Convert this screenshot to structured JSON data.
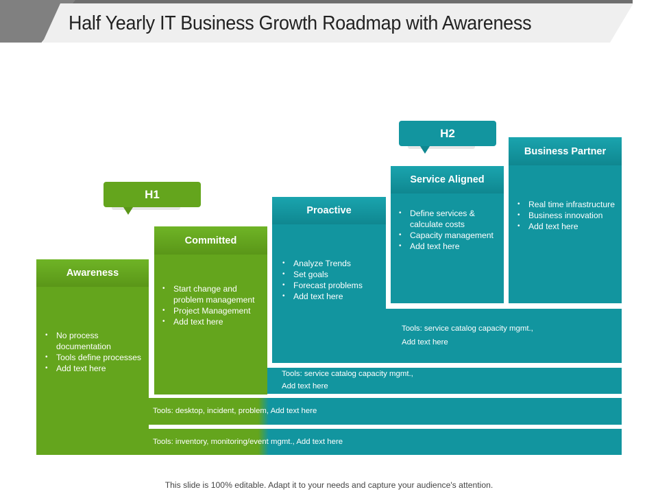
{
  "title": "Half Yearly IT Business Growth Roadmap with Awareness",
  "phases": {
    "h1": "H1",
    "h2": "H2"
  },
  "stages": [
    {
      "name": "Awareness",
      "color": "#64a51d",
      "items": [
        "No process documentation",
        "Tools define processes",
        "Add text here"
      ]
    },
    {
      "name": "Committed",
      "color": "#64a51d",
      "items": [
        "Start change and problem management",
        "Project Management",
        "Add text here"
      ]
    },
    {
      "name": "Proactive",
      "color": "#12959f",
      "items": [
        "Analyze Trends",
        "Set goals",
        "Forecast problems",
        "Add text here"
      ]
    },
    {
      "name": "Service Aligned",
      "color": "#12959f",
      "items": [
        "Define services & calculate costs",
        "Capacity management",
        "Add text here"
      ]
    },
    {
      "name": "Business Partner",
      "color": "#12959f",
      "items": [
        "Real time infrastructure",
        "Business innovation",
        "Add text here"
      ]
    }
  ],
  "tools": {
    "row1": "Tools: inventory, monitoring/event mgmt., Add text here",
    "row2": "Tools: desktop, incident, problem, Add text here",
    "row3_line1": "Tools: service catalog capacity mgmt.,",
    "row3_line2": "Add text here",
    "row4_line1": "Tools: service catalog capacity mgmt.,",
    "row4_line2": "Add text here"
  },
  "footer": "This slide is 100% editable. Adapt it to your needs and capture your audience's attention."
}
